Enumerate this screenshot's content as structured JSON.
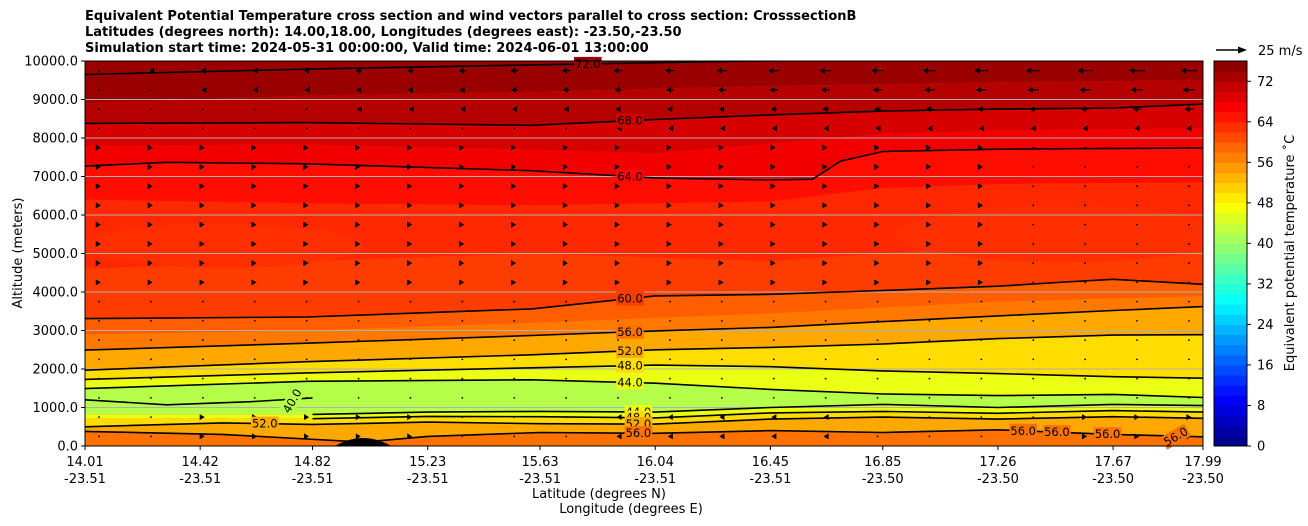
{
  "chart_data": {
    "type": "heatmap",
    "subtype": "filled-contour cross section with line contours and wind vectors",
    "title": [
      "Equivalent Potential Temperature cross section and wind vectors parallel to cross section: CrosssectionB",
      "Latitudes (degrees north): 14.00,18.00, Longitudes (degrees east): -23.50,-23.50",
      "Simulation start time: 2024-05-31 00:00:00, Valid time: 2024-06-01 13:00:00"
    ],
    "xlabel_lat": "Latitude (degrees N)",
    "xlabel_lon": "Longitude (degrees E)",
    "ylabel": "Altitude (meters)",
    "x_ticks_lat": [
      "14.01",
      "14.42",
      "14.82",
      "15.23",
      "15.63",
      "16.04",
      "16.45",
      "16.85",
      "17.26",
      "17.67",
      "17.99"
    ],
    "x_ticks_lon": [
      "-23.51",
      "-23.51",
      "-23.51",
      "-23.51",
      "-23.51",
      "-23.51",
      "-23.51",
      "-23.50",
      "-23.50",
      "-23.50",
      "-23.50"
    ],
    "y_ticks": [
      "10000.0",
      "9000.0",
      "8000.0",
      "7000.0",
      "6000.0",
      "5000.0",
      "4000.0",
      "3000.0",
      "2000.0",
      "1000.0",
      "0.0"
    ],
    "ylim": [
      0,
      10000
    ],
    "xlim": [
      14.01,
      17.99
    ],
    "colorbar": {
      "label": "Equivalent potential temperature $^\\circ$C",
      "label_text": "Equivalent potential temperature ˚C",
      "range": [
        0,
        76
      ],
      "ticks": [
        "0",
        "8",
        "16",
        "24",
        "32",
        "40",
        "48",
        "56",
        "64",
        "72"
      ]
    },
    "quiver_key": {
      "label": "25 m/s",
      "value_ms": 25
    },
    "contour_levels_labeled": [
      "72.0",
      "68.0",
      "64.0",
      "60.0",
      "56.0",
      "52.0",
      "48.0",
      "44.0",
      "44.0",
      "48.0",
      "52.0",
      "56.0",
      "40.0",
      "52.0",
      "56.0",
      "56.0",
      "56.0",
      "56.0"
    ],
    "contours": [
      {
        "level": 72,
        "x": [
          14.01,
          14.8,
          15.6,
          16.4,
          17.2,
          17.99
        ],
        "alt": [
          9650,
          9790,
          9900,
          10000,
          10050,
          10100
        ]
      },
      {
        "level": 68,
        "x": [
          14.01,
          14.8,
          15.6,
          16.04,
          16.45,
          16.85,
          17.26,
          17.67,
          17.99
        ],
        "alt": [
          8380,
          8400,
          8330,
          8480,
          8600,
          8700,
          8750,
          8780,
          8880
        ]
      },
      {
        "level": 64,
        "x": [
          14.01,
          14.3,
          14.8,
          15.6,
          16.04,
          16.45,
          16.6,
          16.7,
          16.85,
          17.26,
          17.67,
          17.99
        ],
        "alt": [
          7270,
          7370,
          7330,
          7150,
          6960,
          6910,
          6930,
          7400,
          7650,
          7710,
          7730,
          7740
        ]
      },
      {
        "level": 60,
        "x": [
          14.01,
          14.8,
          15.6,
          16.04,
          16.45,
          16.85,
          17.26,
          17.5,
          17.67,
          17.99
        ],
        "alt": [
          3310,
          3350,
          3560,
          3900,
          3940,
          4040,
          4150,
          4260,
          4330,
          4200
        ]
      },
      {
        "level": 56,
        "x": [
          14.01,
          14.8,
          15.6,
          16.04,
          16.45,
          16.85,
          17.26,
          17.67,
          17.99
        ],
        "alt": [
          2490,
          2670,
          2870,
          2990,
          3080,
          3230,
          3380,
          3520,
          3620
        ]
      },
      {
        "level": 52,
        "x": [
          14.01,
          14.8,
          15.6,
          16.04,
          16.45,
          16.85,
          17.26,
          17.67,
          17.99
        ],
        "alt": [
          1970,
          2190,
          2370,
          2500,
          2560,
          2650,
          2790,
          2880,
          2890
        ]
      },
      {
        "level": 48,
        "x": [
          14.01,
          14.8,
          15.6,
          16.04,
          16.45,
          16.85,
          17.26,
          17.67,
          17.99
        ],
        "alt": [
          1730,
          1900,
          2030,
          2100,
          2060,
          1950,
          1880,
          1800,
          1760
        ]
      },
      {
        "level": 44,
        "x": [
          14.01,
          14.8,
          15.6,
          16.04,
          16.45,
          16.85,
          17.26,
          17.67,
          17.99
        ],
        "alt": [
          1490,
          1680,
          1720,
          1630,
          1470,
          1350,
          1310,
          1340,
          1260
        ]
      },
      {
        "level": 44,
        "x": [
          14.82,
          15.23,
          15.63,
          16.04,
          16.45,
          16.85,
          17.26,
          17.67,
          17.99
        ],
        "alt": [
          820,
          880,
          900,
          880,
          1000,
          1080,
          1000,
          1080,
          1050
        ]
      },
      {
        "level": 48,
        "x": [
          14.82,
          15.23,
          15.63,
          16.04,
          16.45,
          16.85,
          17.26,
          17.67,
          17.99
        ],
        "alt": [
          710,
          770,
          760,
          730,
          860,
          900,
          850,
          920,
          880
        ]
      },
      {
        "level": 52,
        "x": [
          14.01,
          14.5,
          14.82,
          15.23,
          15.63,
          16.04,
          16.45,
          16.85,
          17.26,
          17.67,
          17.99
        ],
        "alt": [
          500,
          600,
          560,
          620,
          580,
          570,
          700,
          750,
          700,
          760,
          720
        ]
      },
      {
        "level": 56,
        "x": [
          14.01,
          14.5,
          15.0,
          15.23,
          15.63,
          16.04,
          16.45,
          16.85,
          17.26,
          17.67,
          17.99
        ],
        "alt": [
          380,
          300,
          100,
          250,
          350,
          330,
          400,
          350,
          420,
          300,
          240
        ]
      },
      {
        "level": 40,
        "x": [
          14.01,
          14.3,
          14.6,
          14.82
        ],
        "alt": [
          1200,
          1070,
          1150,
          1250
        ]
      }
    ],
    "wind_vectors": "mostly easterly (pointing -x) aloft above 8000 m with strongest winds near 9000-10000 m; weak westerly vectors 4000-7000 m and near 600 m"
  }
}
